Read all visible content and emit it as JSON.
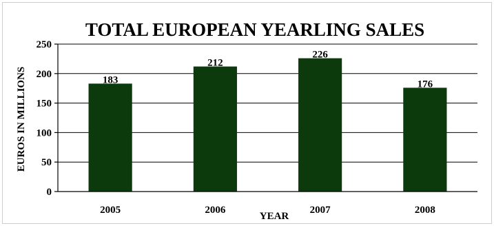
{
  "chart_data": {
    "type": "bar",
    "title": "TOTAL EUROPEAN YEARLING SALES",
    "xlabel": "YEAR",
    "ylabel": "EUROS IN MILLIONS",
    "categories": [
      "2005",
      "2006",
      "2007",
      "2008"
    ],
    "values": [
      183,
      212,
      226,
      176
    ],
    "data_labels": [
      "183",
      "212",
      "226",
      "176"
    ],
    "y_ticks": [
      0,
      50,
      100,
      150,
      200,
      250
    ],
    "y_tick_labels": [
      "0",
      "50",
      "100",
      "150",
      "200",
      "250"
    ],
    "ylim": [
      0,
      250
    ],
    "grid": true,
    "legend": "none",
    "bar_color": "#0d3a0d"
  }
}
